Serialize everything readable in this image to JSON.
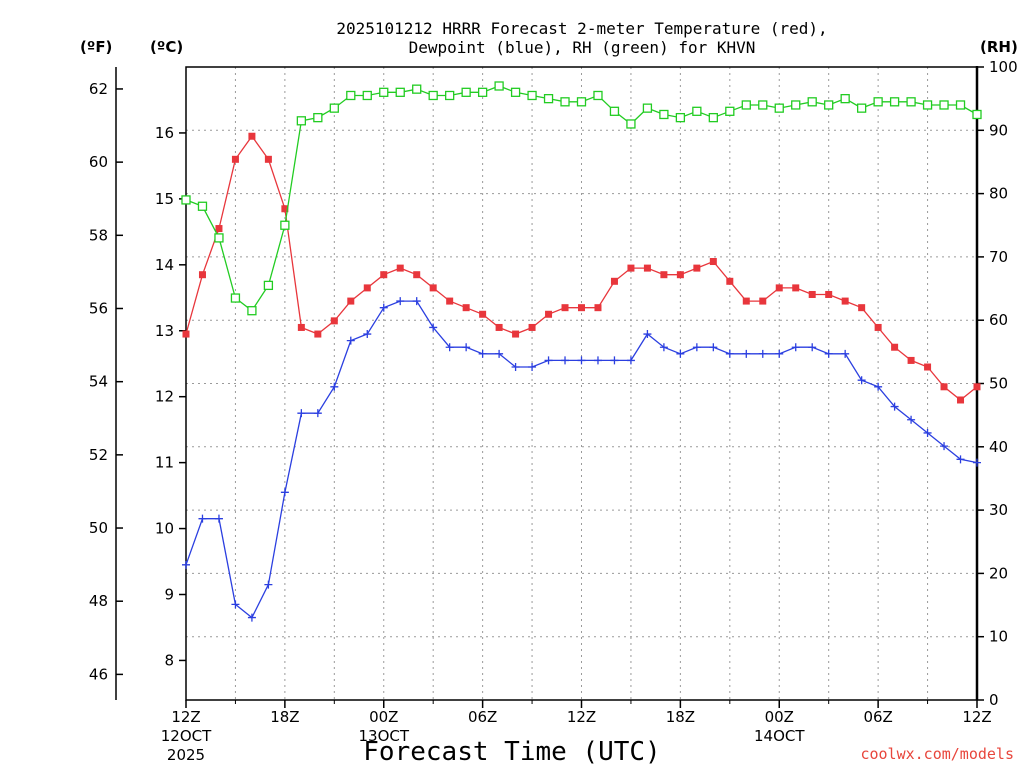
{
  "chart_data": {
    "type": "line",
    "title_lines": [
      "2025101212 HRRR Forecast 2-meter Temperature (red),",
      "Dewpoint (blue), RH (green) for KHVN"
    ],
    "xlabel": "Forecast Time (UTC)",
    "credit": "coolwx.com/models",
    "units": {
      "f": "(ºF)",
      "c": "(ºC)",
      "rh": "(RH)"
    },
    "x_hours": [
      0,
      1,
      2,
      3,
      4,
      5,
      6,
      7,
      8,
      9,
      10,
      11,
      12,
      13,
      14,
      15,
      16,
      17,
      18,
      19,
      20,
      21,
      22,
      23,
      24,
      25,
      26,
      27,
      28,
      29,
      30,
      31,
      32,
      33,
      34,
      35,
      36,
      37,
      38,
      39,
      40,
      41,
      42,
      43,
      44,
      45,
      46,
      47,
      48
    ],
    "xlim": [
      0,
      48
    ],
    "x_ticks": [
      {
        "hour": 0,
        "label": "12Z",
        "sub1": "12OCT",
        "sub2": "2025"
      },
      {
        "hour": 6,
        "label": "18Z",
        "sub1": "",
        "sub2": ""
      },
      {
        "hour": 12,
        "label": "00Z",
        "sub1": "13OCT",
        "sub2": ""
      },
      {
        "hour": 18,
        "label": "06Z",
        "sub1": "",
        "sub2": ""
      },
      {
        "hour": 24,
        "label": "12Z",
        "sub1": "",
        "sub2": ""
      },
      {
        "hour": 30,
        "label": "18Z",
        "sub1": "",
        "sub2": ""
      },
      {
        "hour": 36,
        "label": "00Z",
        "sub1": "14OCT",
        "sub2": ""
      },
      {
        "hour": 42,
        "label": "06Z",
        "sub1": "",
        "sub2": ""
      },
      {
        "hour": 48,
        "label": "12Z",
        "sub1": "",
        "sub2": ""
      }
    ],
    "ylim_c": [
      7.4,
      17.0
    ],
    "ylim_f": [
      45.3,
      62.6
    ],
    "ylim_rh": [
      0,
      100
    ],
    "y_ticks_c": [
      8,
      9,
      10,
      11,
      12,
      13,
      14,
      15,
      16
    ],
    "y_ticks_f": [
      46,
      48,
      50,
      52,
      54,
      56,
      58,
      60,
      62
    ],
    "y_ticks_rh": [
      0,
      10,
      20,
      30,
      40,
      50,
      60,
      70,
      80,
      90,
      100
    ],
    "grid": true,
    "series": [
      {
        "name": "Temperature",
        "unit": "C",
        "color": "#e8363c",
        "marker": "filled-square",
        "values": [
          12.95,
          13.85,
          14.55,
          15.6,
          15.95,
          15.6,
          14.85,
          13.05,
          12.95,
          13.15,
          13.45,
          13.65,
          13.85,
          13.95,
          13.85,
          13.65,
          13.45,
          13.35,
          13.25,
          13.05,
          12.95,
          13.05,
          13.25,
          13.35,
          13.35,
          13.35,
          13.75,
          13.95,
          13.95,
          13.85,
          13.85,
          13.95,
          14.05,
          13.75,
          13.45,
          13.45,
          13.65,
          13.65,
          13.55,
          13.55,
          13.45,
          13.35,
          13.05,
          12.75,
          12.55,
          12.45,
          12.15,
          11.95,
          12.15
        ]
      },
      {
        "name": "Dewpoint",
        "unit": "C",
        "color": "#2b3fe0",
        "marker": "plus",
        "values": [
          9.45,
          10.15,
          10.15,
          8.85,
          8.65,
          9.15,
          10.55,
          11.75,
          11.75,
          12.15,
          12.85,
          12.95,
          13.35,
          13.45,
          13.45,
          13.05,
          12.75,
          12.75,
          12.65,
          12.65,
          12.45,
          12.45,
          12.55,
          12.55,
          12.55,
          12.55,
          12.55,
          12.55,
          12.95,
          12.75,
          12.65,
          12.75,
          12.75,
          12.65,
          12.65,
          12.65,
          12.65,
          12.75,
          12.75,
          12.65,
          12.65,
          12.25,
          12.15,
          11.85,
          11.65,
          11.45,
          11.25,
          11.05,
          11.0
        ]
      },
      {
        "name": "RH",
        "unit": "RH",
        "color": "#22cc22",
        "marker": "open-square",
        "values": [
          79,
          78,
          73,
          63.5,
          61.5,
          65.5,
          75,
          91.5,
          92,
          93.5,
          95.5,
          95.5,
          96,
          96,
          96.5,
          95.5,
          95.5,
          96,
          96,
          97,
          96,
          95.5,
          95,
          94.5,
          94.5,
          95.5,
          93,
          91,
          93.5,
          92.5,
          92,
          93,
          92,
          93,
          94,
          94,
          93.5,
          94,
          94.5,
          94,
          95,
          93.5,
          94.5,
          94.5,
          94.5,
          94,
          94,
          94,
          92.5
        ]
      }
    ]
  }
}
